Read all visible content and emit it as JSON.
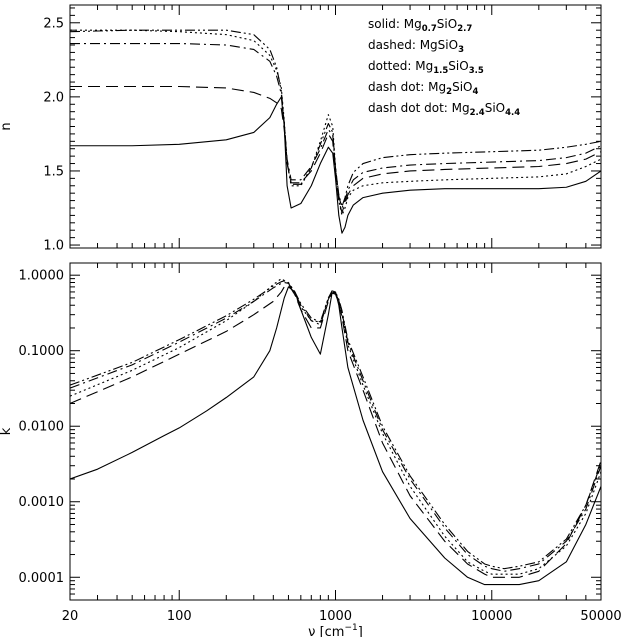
{
  "chart_data": [
    {
      "type": "line",
      "panel": "top",
      "xscale": "log",
      "xlim": [
        20,
        50000
      ],
      "ylim": [
        0.98,
        2.62
      ],
      "ylabel": "n",
      "yticks": [
        1.0,
        1.5,
        2.0,
        2.5
      ],
      "ytick_labels": [
        "1.0",
        "1.5",
        "2.0",
        "2.5"
      ],
      "legend": {
        "placement": "top-right",
        "entries": [
          {
            "style": "solid",
            "prefix": "solid: ",
            "parts": [
              [
                "Mg",
                ""
              ],
              [
                "0.7",
                "sub"
              ],
              [
                "SiO",
                ""
              ],
              [
                "2.7",
                "sub"
              ]
            ]
          },
          {
            "style": "dashed",
            "prefix": "dashed: ",
            "parts": [
              [
                "MgSiO",
                ""
              ],
              [
                "3",
                "sub"
              ]
            ]
          },
          {
            "style": "dotted",
            "prefix": "dotted: ",
            "parts": [
              [
                "Mg",
                ""
              ],
              [
                "1.5",
                "sub"
              ],
              [
                "SiO",
                ""
              ],
              [
                "3.5",
                "sub"
              ]
            ]
          },
          {
            "style": "dash dot",
            "prefix": "dash dot: ",
            "parts": [
              [
                "Mg",
                ""
              ],
              [
                "2",
                "sub"
              ],
              [
                "SiO",
                ""
              ],
              [
                "4",
                "sub"
              ]
            ]
          },
          {
            "style": "dash dot dot",
            "prefix": "dash dot dot: ",
            "parts": [
              [
                "Mg",
                ""
              ],
              [
                "2.4",
                "sub"
              ],
              [
                "SiO",
                ""
              ],
              [
                "4.4",
                "sub"
              ]
            ]
          }
        ]
      },
      "series": [
        {
          "style": "solid",
          "x": [
            20,
            50,
            100,
            200,
            300,
            380,
            420,
            450,
            470,
            490,
            520,
            600,
            700,
            800,
            900,
            960,
            1000,
            1050,
            1100,
            1150,
            1200,
            1300,
            1500,
            2000,
            3000,
            5000,
            10000,
            20000,
            30000,
            40000,
            50000
          ],
          "y": [
            1.67,
            1.67,
            1.68,
            1.71,
            1.76,
            1.86,
            1.95,
            2.0,
            1.8,
            1.4,
            1.25,
            1.28,
            1.4,
            1.55,
            1.66,
            1.62,
            1.45,
            1.2,
            1.08,
            1.12,
            1.2,
            1.27,
            1.32,
            1.35,
            1.37,
            1.38,
            1.38,
            1.38,
            1.39,
            1.43,
            1.5
          ]
        },
        {
          "style": "dashed",
          "x": [
            20,
            50,
            100,
            200,
            300,
            380,
            420,
            450,
            470,
            490,
            520,
            600,
            700,
            800,
            900,
            960,
            1000,
            1050,
            1100,
            1150,
            1200,
            1300,
            1500,
            2000,
            3000,
            5000,
            10000,
            20000,
            30000,
            40000,
            50000
          ],
          "y": [
            2.07,
            2.07,
            2.07,
            2.06,
            2.03,
            1.99,
            1.96,
            1.92,
            1.78,
            1.55,
            1.42,
            1.42,
            1.5,
            1.62,
            1.75,
            1.7,
            1.48,
            1.3,
            1.22,
            1.28,
            1.34,
            1.4,
            1.45,
            1.48,
            1.5,
            1.51,
            1.52,
            1.53,
            1.55,
            1.58,
            1.63
          ]
        },
        {
          "style": "dotted",
          "x": [
            20,
            50,
            100,
            200,
            300,
            380,
            420,
            450,
            470,
            490,
            520,
            600,
            700,
            800,
            900,
            960,
            1000,
            1050,
            1100,
            1150,
            1200,
            1300,
            1500,
            2000,
            3000,
            5000,
            10000,
            20000,
            30000,
            40000,
            50000
          ],
          "y": [
            2.45,
            2.45,
            2.44,
            2.42,
            2.38,
            2.28,
            2.18,
            2.06,
            1.84,
            1.56,
            1.4,
            1.4,
            1.52,
            1.7,
            1.88,
            1.8,
            1.52,
            1.3,
            1.2,
            1.25,
            1.32,
            1.37,
            1.4,
            1.42,
            1.43,
            1.44,
            1.45,
            1.46,
            1.48,
            1.53,
            1.58
          ]
        },
        {
          "style": "dash dot",
          "x": [
            20,
            50,
            100,
            200,
            300,
            380,
            420,
            450,
            470,
            490,
            520,
            600,
            700,
            800,
            900,
            960,
            1000,
            1050,
            1100,
            1150,
            1200,
            1300,
            1500,
            2000,
            3000,
            5000,
            10000,
            20000,
            30000,
            40000,
            50000
          ],
          "y": [
            2.36,
            2.36,
            2.36,
            2.35,
            2.32,
            2.24,
            2.14,
            2.02,
            1.82,
            1.58,
            1.44,
            1.44,
            1.53,
            1.65,
            1.78,
            1.74,
            1.52,
            1.33,
            1.25,
            1.3,
            1.37,
            1.44,
            1.49,
            1.52,
            1.54,
            1.55,
            1.56,
            1.57,
            1.59,
            1.62,
            1.67
          ]
        },
        {
          "style": "dash dot dot",
          "x": [
            20,
            50,
            100,
            200,
            300,
            380,
            420,
            450,
            470,
            490,
            520,
            600,
            700,
            800,
            900,
            960,
            1000,
            1050,
            1100,
            1150,
            1200,
            1300,
            1500,
            2000,
            3000,
            5000,
            10000,
            20000,
            30000,
            40000,
            50000
          ],
          "y": [
            2.44,
            2.45,
            2.45,
            2.45,
            2.42,
            2.32,
            2.2,
            2.04,
            1.82,
            1.56,
            1.41,
            1.41,
            1.52,
            1.68,
            1.82,
            1.76,
            1.52,
            1.34,
            1.26,
            1.32,
            1.4,
            1.49,
            1.55,
            1.59,
            1.61,
            1.62,
            1.63,
            1.64,
            1.66,
            1.68,
            1.7
          ]
        }
      ]
    },
    {
      "type": "line",
      "panel": "bottom",
      "xscale": "log",
      "yscale": "log",
      "xlim": [
        20,
        50000
      ],
      "ylim": [
        5e-05,
        1.45
      ],
      "ylabel": "k",
      "xlabel_parts": [
        [
          "ν [cm",
          ""
        ],
        [
          "−1",
          "sup"
        ],
        [
          "]",
          ""
        ]
      ],
      "xticks": [
        20,
        100,
        1000,
        10000,
        50000
      ],
      "xtick_labels": [
        "20",
        "100",
        "1000",
        "10000",
        "50000"
      ],
      "yticks": [
        0.0001,
        0.001,
        0.01,
        0.1,
        1.0
      ],
      "ytick_labels": [
        "0.0001",
        "0.0010",
        "0.0100",
        "0.1000",
        "1.0000"
      ],
      "series": [
        {
          "style": "solid",
          "x": [
            20,
            30,
            50,
            80,
            100,
            150,
            200,
            300,
            380,
            420,
            470,
            500,
            550,
            600,
            700,
            800,
            900,
            950,
            1000,
            1050,
            1100,
            1200,
            1500,
            2000,
            3000,
            5000,
            7000,
            9000,
            10000,
            12000,
            15000,
            20000,
            30000,
            40000,
            50000
          ],
          "y": [
            0.002,
            0.0027,
            0.0045,
            0.0075,
            0.0095,
            0.016,
            0.024,
            0.045,
            0.1,
            0.2,
            0.5,
            0.7,
            0.6,
            0.35,
            0.15,
            0.09,
            0.3,
            0.58,
            0.6,
            0.4,
            0.2,
            0.06,
            0.012,
            0.0025,
            0.0006,
            0.00018,
            0.0001,
            8e-05,
            8e-05,
            8e-05,
            8e-05,
            9e-05,
            0.00016,
            0.0005,
            0.0016
          ]
        },
        {
          "style": "dashed",
          "x": [
            20,
            50,
            100,
            200,
            300,
            400,
            450,
            470,
            500,
            550,
            600,
            700,
            800,
            900,
            950,
            1000,
            1050,
            1100,
            1200,
            1500,
            2000,
            3000,
            5000,
            7000,
            9000,
            10000,
            12000,
            15000,
            20000,
            30000,
            40000,
            50000
          ],
          "y": [
            0.02,
            0.045,
            0.09,
            0.18,
            0.3,
            0.45,
            0.6,
            0.7,
            0.75,
            0.55,
            0.35,
            0.2,
            0.2,
            0.45,
            0.58,
            0.56,
            0.42,
            0.28,
            0.1,
            0.03,
            0.006,
            0.0012,
            0.0003,
            0.00015,
            0.00011,
            0.0001,
            0.0001,
            0.0001,
            0.00012,
            0.00028,
            0.0009,
            0.0035
          ]
        },
        {
          "style": "dotted",
          "x": [
            20,
            50,
            100,
            200,
            300,
            400,
            450,
            470,
            500,
            550,
            600,
            700,
            800,
            900,
            950,
            1000,
            1050,
            1100,
            1200,
            1500,
            2000,
            3000,
            5000,
            7000,
            9000,
            10000,
            12000,
            15000,
            20000,
            30000,
            40000,
            50000
          ],
          "y": [
            0.025,
            0.055,
            0.11,
            0.25,
            0.45,
            0.75,
            0.9,
            0.85,
            0.78,
            0.55,
            0.38,
            0.25,
            0.24,
            0.5,
            0.6,
            0.58,
            0.45,
            0.3,
            0.12,
            0.035,
            0.008,
            0.0016,
            0.00035,
            0.00016,
            0.00012,
            0.00011,
            0.00011,
            0.00011,
            0.00013,
            0.00026,
            0.0007,
            0.0025
          ]
        },
        {
          "style": "dash dot",
          "x": [
            20,
            50,
            100,
            200,
            300,
            400,
            450,
            470,
            500,
            550,
            600,
            700,
            800,
            900,
            950,
            1000,
            1050,
            1100,
            1200,
            1500,
            2000,
            3000,
            5000,
            7000,
            9000,
            10000,
            12000,
            15000,
            20000,
            30000,
            40000,
            50000
          ],
          "y": [
            0.032,
            0.065,
            0.13,
            0.27,
            0.45,
            0.68,
            0.78,
            0.8,
            0.78,
            0.58,
            0.4,
            0.25,
            0.22,
            0.48,
            0.6,
            0.58,
            0.46,
            0.32,
            0.13,
            0.04,
            0.009,
            0.002,
            0.00045,
            0.0002,
            0.00014,
            0.00013,
            0.00012,
            0.00013,
            0.00015,
            0.0003,
            0.0008,
            0.003
          ]
        },
        {
          "style": "dash dot dot",
          "x": [
            20,
            50,
            100,
            200,
            300,
            400,
            450,
            470,
            500,
            550,
            600,
            700,
            800,
            900,
            950,
            1000,
            1050,
            1100,
            1200,
            1500,
            2000,
            3000,
            5000,
            7000,
            9000,
            10000,
            12000,
            15000,
            20000,
            30000,
            40000,
            50000
          ],
          "y": [
            0.035,
            0.07,
            0.14,
            0.29,
            0.48,
            0.72,
            0.82,
            0.84,
            0.8,
            0.6,
            0.42,
            0.27,
            0.24,
            0.5,
            0.62,
            0.6,
            0.48,
            0.34,
            0.14,
            0.045,
            0.01,
            0.0022,
            0.0005,
            0.00022,
            0.00015,
            0.00014,
            0.00013,
            0.00014,
            0.00016,
            0.00032,
            0.0009,
            0.0032
          ]
        }
      ]
    }
  ]
}
